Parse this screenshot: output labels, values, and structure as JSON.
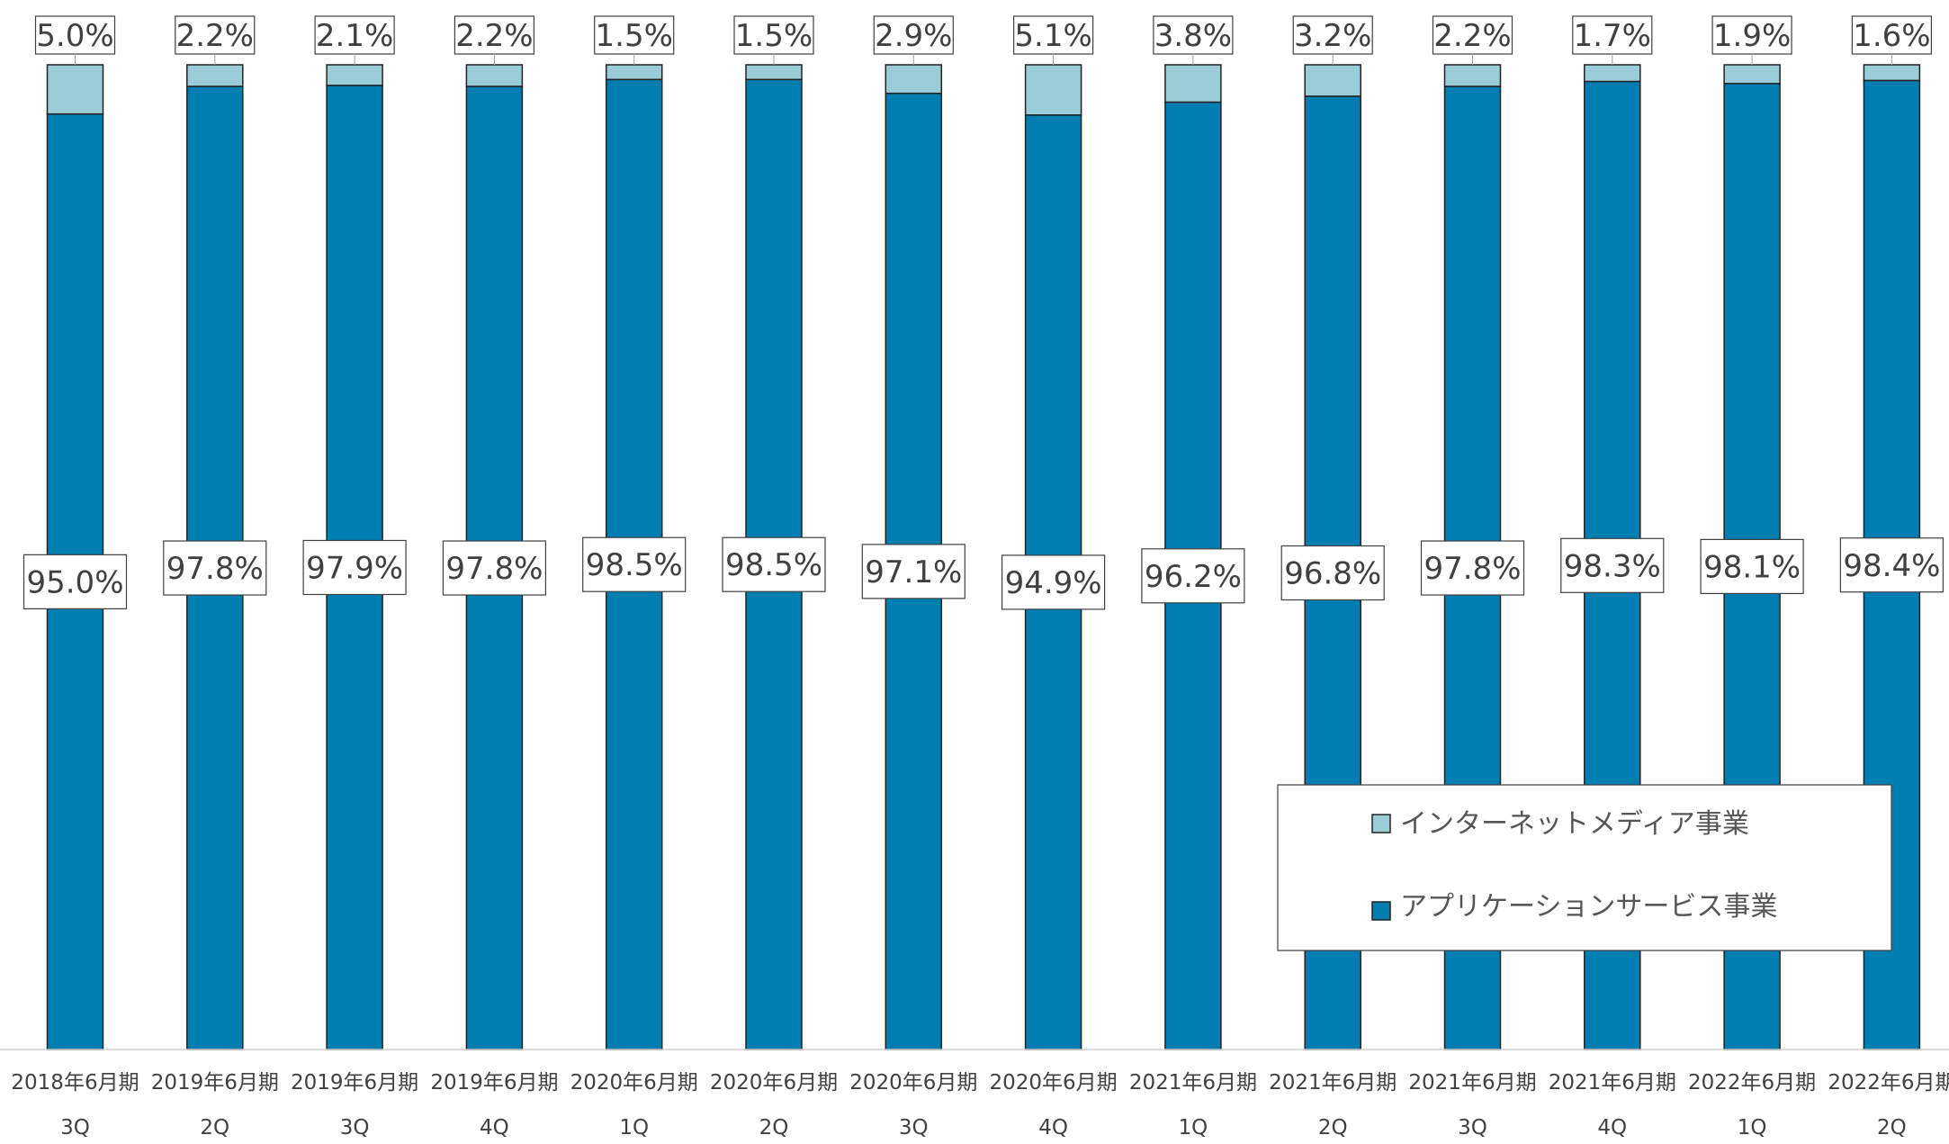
{
  "chart_data": {
    "type": "bar",
    "stacked": true,
    "percent_stacked": true,
    "categories": [
      [
        "2018年6月期",
        "3Q"
      ],
      [
        "2019年6月期",
        "2Q"
      ],
      [
        "2019年6月期",
        "3Q"
      ],
      [
        "2019年6月期",
        "4Q"
      ],
      [
        "2020年6月期",
        "1Q"
      ],
      [
        "2020年6月期",
        "2Q"
      ],
      [
        "2020年6月期",
        "3Q"
      ],
      [
        "2020年6月期",
        "4Q"
      ],
      [
        "2021年6月期",
        "1Q"
      ],
      [
        "2021年6月期",
        "2Q"
      ],
      [
        "2021年6月期",
        "3Q"
      ],
      [
        "2021年6月期",
        "4Q"
      ],
      [
        "2022年6月期",
        "1Q"
      ],
      [
        "2022年6月期",
        "2Q"
      ]
    ],
    "series": [
      {
        "name": "アプリケーションサービス事業",
        "color": "#007DB1",
        "values": [
          95.0,
          97.8,
          97.9,
          97.8,
          98.5,
          98.5,
          97.1,
          94.9,
          96.2,
          96.8,
          97.8,
          98.3,
          98.1,
          98.4
        ],
        "labels": [
          "95.0%",
          "97.8%",
          "97.9%",
          "97.8%",
          "98.5%",
          "98.5%",
          "97.1%",
          "94.9%",
          "96.2%",
          "96.8%",
          "97.8%",
          "98.3%",
          "98.1%",
          "98.4%"
        ]
      },
      {
        "name": "インターネットメディア事業",
        "color": "#9BCDD9",
        "values": [
          5.0,
          2.2,
          2.1,
          2.2,
          1.5,
          1.5,
          2.9,
          5.1,
          3.8,
          3.2,
          2.2,
          1.7,
          1.9,
          1.6
        ],
        "labels": [
          "5.0%",
          "2.2%",
          "2.1%",
          "2.2%",
          "1.5%",
          "1.5%",
          "2.9%",
          "5.1%",
          "3.8%",
          "3.2%",
          "2.2%",
          "1.7%",
          "1.9%",
          "1.6%"
        ]
      }
    ],
    "legend": {
      "position": "bottom-right",
      "order": [
        "インターネットメディア事業",
        "アプリケーションサービス事業"
      ]
    },
    "ylim": [
      0,
      100
    ],
    "grid": false,
    "colors": {
      "label_text": "#404040",
      "axis_text": "#404040",
      "outline": "#222222",
      "box_border": "#404040"
    }
  }
}
